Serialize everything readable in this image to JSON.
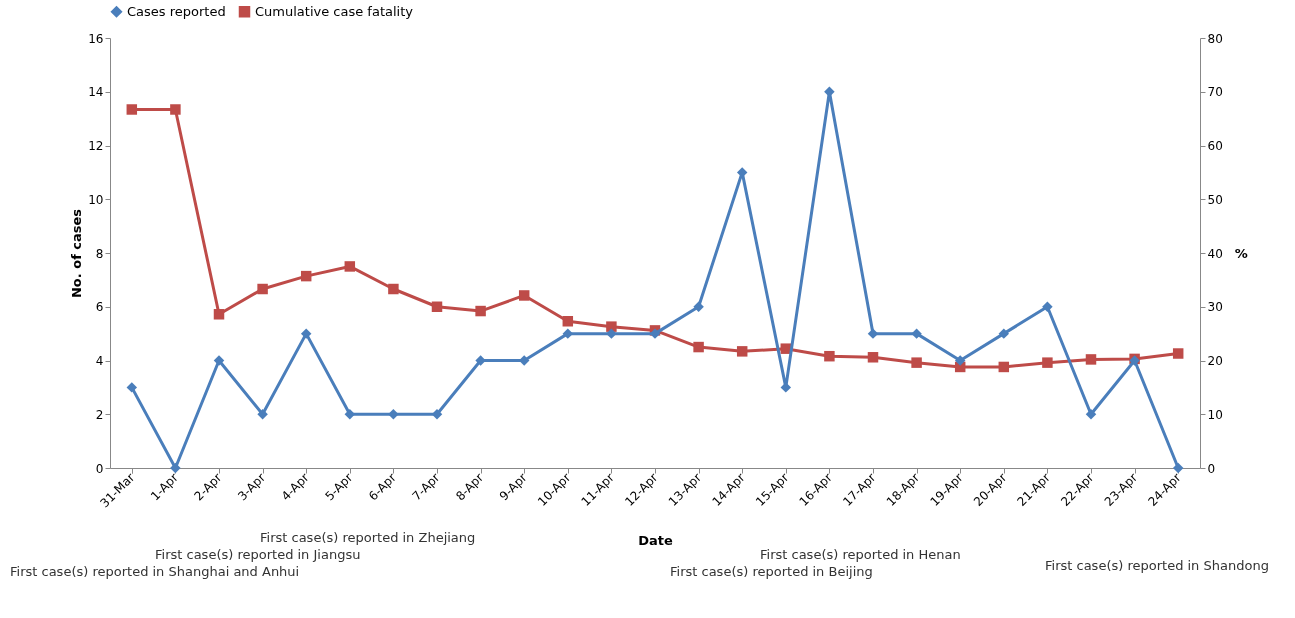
{
  "chart_data": {
    "type": "line",
    "xlabel": "Date",
    "ylabel": "No. of cases",
    "y2label": "%",
    "categories": [
      "31-Mar",
      "1-Apr",
      "2-Apr",
      "3-Apr",
      "4-Apr",
      "5-Apr",
      "6-Apr",
      "7-Apr",
      "8-Apr",
      "9-Apr",
      "10-Apr",
      "11-Apr",
      "12-Apr",
      "13-Apr",
      "14-Apr",
      "15-Apr",
      "16-Apr",
      "17-Apr",
      "18-Apr",
      "19-Apr",
      "20-Apr",
      "21-Apr",
      "22-Apr",
      "23-Apr",
      "24-Apr"
    ],
    "series": [
      {
        "name": "Cases reported",
        "color": "#4a7ebb",
        "marker": "diamond",
        "values": [
          3,
          0,
          4,
          2,
          5,
          2,
          2,
          2,
          4,
          4,
          5,
          5,
          5,
          6,
          11,
          3,
          14,
          5,
          5,
          4,
          5,
          6,
          2,
          4,
          0
        ]
      },
      {
        "name": "Cumulative case fatality",
        "color": "#be4b48",
        "marker": "square",
        "axis": "y2",
        "values": [
          66.7,
          66.7,
          28.6,
          33.3,
          35.7,
          37.5,
          33.3,
          30,
          29.2,
          32.1,
          27.3,
          26.3,
          25.6,
          22.5,
          21.7,
          22.2,
          20.8,
          20.6,
          19.6,
          18.8,
          18.8,
          19.6,
          20.2,
          20.3,
          21.3
        ]
      }
    ],
    "ylim": [
      0,
      16
    ],
    "yticks": [
      0,
      2,
      4,
      6,
      8,
      10,
      12,
      14,
      16
    ],
    "y2lim": [
      0,
      80
    ],
    "y2ticks": [
      0,
      10,
      20,
      30,
      40,
      50,
      60,
      70,
      80
    ],
    "grid": false,
    "legend": "top",
    "annotations": [
      "First case(s) reported in Shanghai and Anhui",
      "First case(s) reported in Jiangsu",
      "First case(s) reported in Zhejiang",
      "First case(s) reported in Beijing",
      "First case(s) reported in Henan",
      "First case(s) reported in Shandong"
    ]
  }
}
